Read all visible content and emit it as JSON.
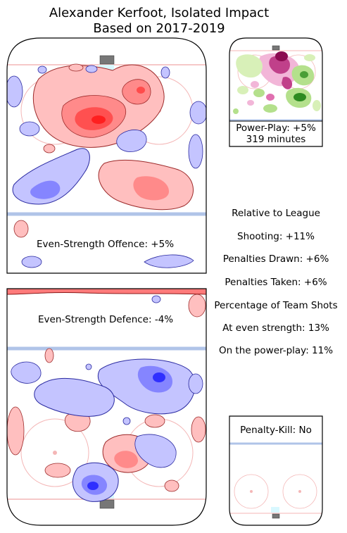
{
  "title": {
    "line1": "Alexander Kerfoot, Isolated Impact",
    "line2": "Based on 2017-2019"
  },
  "offence": {
    "label": "Even-Strength Offence: +5%"
  },
  "defence": {
    "label": "Even-Strength Defence: -4%"
  },
  "power_play": {
    "label": "Power-Play: +5%",
    "minutes": "319 minutes"
  },
  "penalty_kill": {
    "label": "Penalty-Kill: No"
  },
  "stats": {
    "header": "Relative to League",
    "shooting": "Shooting: +11%",
    "penalties_drawn": "Penalties Drawn: +6%",
    "penalties_taken": "Penalties Taken: +6%",
    "team_shots_header": "Percentage of Team Shots",
    "even_strength": "At even strength: 13%",
    "power_play": "On the power-play: 11%"
  },
  "colors": {
    "rink_line": "#000000",
    "blue_line": "#b0c4e8",
    "goal_line": "#f4b6b6",
    "positive": "#ff4d4d",
    "negative": "#5b5bff",
    "pp_positive": "#8b0a50",
    "pp_negative": "#2e8b22"
  }
}
